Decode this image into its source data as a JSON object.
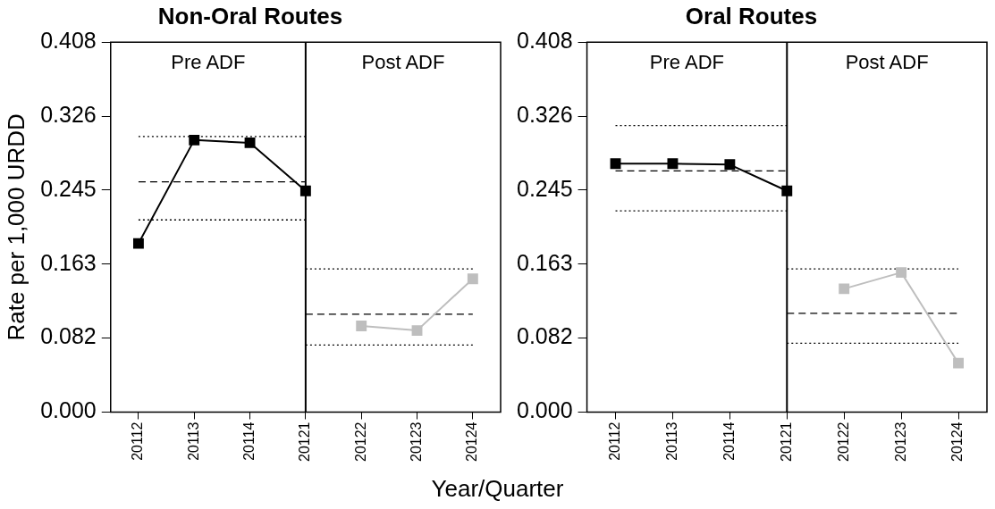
{
  "chart_data": [
    {
      "type": "line",
      "title": "Non-Oral Routes",
      "xlabel": "Year/Quarter",
      "ylabel": "Rate per 1,000 URDD",
      "categories": [
        "20112",
        "20113",
        "20114",
        "20121",
        "20122",
        "20123",
        "20124"
      ],
      "ylim": [
        0,
        0.408
      ],
      "yticks": [
        {
          "value": 0,
          "label": "0.000"
        },
        0.082,
        0.163,
        0.245,
        0.326,
        0.408
      ],
      "grid": false,
      "legend": false,
      "marker": "square",
      "series": [
        {
          "color": "#000000",
          "values": [
            0.186,
            0.3,
            0.297,
            0.244,
            null,
            null,
            null
          ]
        },
        {
          "color": "#bebebe",
          "values": [
            null,
            null,
            null,
            null,
            0.095,
            0.09,
            0.147
          ]
        },
        {
          "color": "#000000",
          "marker": "none",
          "line_style": "dotted",
          "values": [
            0.304,
            0.304,
            0.304,
            0.304,
            null,
            null,
            null
          ]
        },
        {
          "color": "#000000",
          "marker": "none",
          "line_style": "dashed",
          "values": [
            0.254,
            0.254,
            0.254,
            0.254,
            null,
            null,
            null
          ]
        },
        {
          "color": "#000000",
          "marker": "none",
          "line_style": "dotted",
          "values": [
            0.212,
            0.212,
            0.212,
            0.212,
            null,
            null,
            null
          ]
        },
        {
          "color": "#000000",
          "marker": "none",
          "line_style": "dotted",
          "values": [
            null,
            null,
            null,
            0.158,
            0.158,
            0.158,
            0.158
          ]
        },
        {
          "color": "#000000",
          "marker": "none",
          "line_style": "dashed",
          "values": [
            null,
            null,
            null,
            0.108,
            0.108,
            0.108,
            0.108
          ]
        },
        {
          "color": "#000000",
          "marker": "none",
          "line_style": "dotted",
          "values": [
            null,
            null,
            null,
            0.074,
            0.074,
            0.074,
            0.074
          ]
        }
      ],
      "ref_lines": [
        {
          "axis": "x",
          "value": "20121",
          "color": "#000000"
        }
      ],
      "annotations": [
        "Pre ADF",
        "Post ADF"
      ]
    },
    {
      "type": "line",
      "title": "Oral Routes",
      "categories": [
        "20112",
        "20113",
        "20114",
        "20121",
        "20122",
        "20123",
        "20124"
      ],
      "ylim": [
        0,
        0.408
      ],
      "yticks": [
        {
          "value": 0,
          "label": "0.000"
        },
        0.082,
        0.163,
        0.245,
        0.326,
        0.408
      ],
      "grid": false,
      "legend": false,
      "marker": "square",
      "series": [
        {
          "color": "#000000",
          "values": [
            0.274,
            0.274,
            0.273,
            0.244,
            null,
            null,
            null
          ]
        },
        {
          "color": "#bebebe",
          "values": [
            null,
            null,
            null,
            null,
            0.136,
            0.154,
            0.054
          ]
        },
        {
          "color": "#000000",
          "marker": "none",
          "line_style": "dotted",
          "values": [
            0.316,
            0.316,
            0.316,
            0.316,
            null,
            null,
            null
          ]
        },
        {
          "color": "#000000",
          "marker": "none",
          "line_style": "dashed",
          "values": [
            0.266,
            0.266,
            0.266,
            0.266,
            null,
            null,
            null
          ]
        },
        {
          "color": "#000000",
          "marker": "none",
          "line_style": "dotted",
          "values": [
            0.222,
            0.222,
            0.222,
            0.222,
            null,
            null,
            null
          ]
        },
        {
          "color": "#000000",
          "marker": "none",
          "line_style": "dotted",
          "values": [
            null,
            null,
            null,
            0.158,
            0.158,
            0.158,
            0.158
          ]
        },
        {
          "color": "#000000",
          "marker": "none",
          "line_style": "dashed",
          "values": [
            null,
            null,
            null,
            0.109,
            0.109,
            0.109,
            0.109
          ]
        },
        {
          "color": "#000000",
          "marker": "none",
          "line_style": "dotted",
          "values": [
            null,
            null,
            null,
            0.076,
            0.076,
            0.076,
            0.076
          ]
        }
      ],
      "ref_lines": [
        {
          "axis": "x",
          "value": "20121",
          "color": "#000000"
        }
      ],
      "annotations": [
        "Pre ADF",
        "Post ADF"
      ]
    }
  ]
}
